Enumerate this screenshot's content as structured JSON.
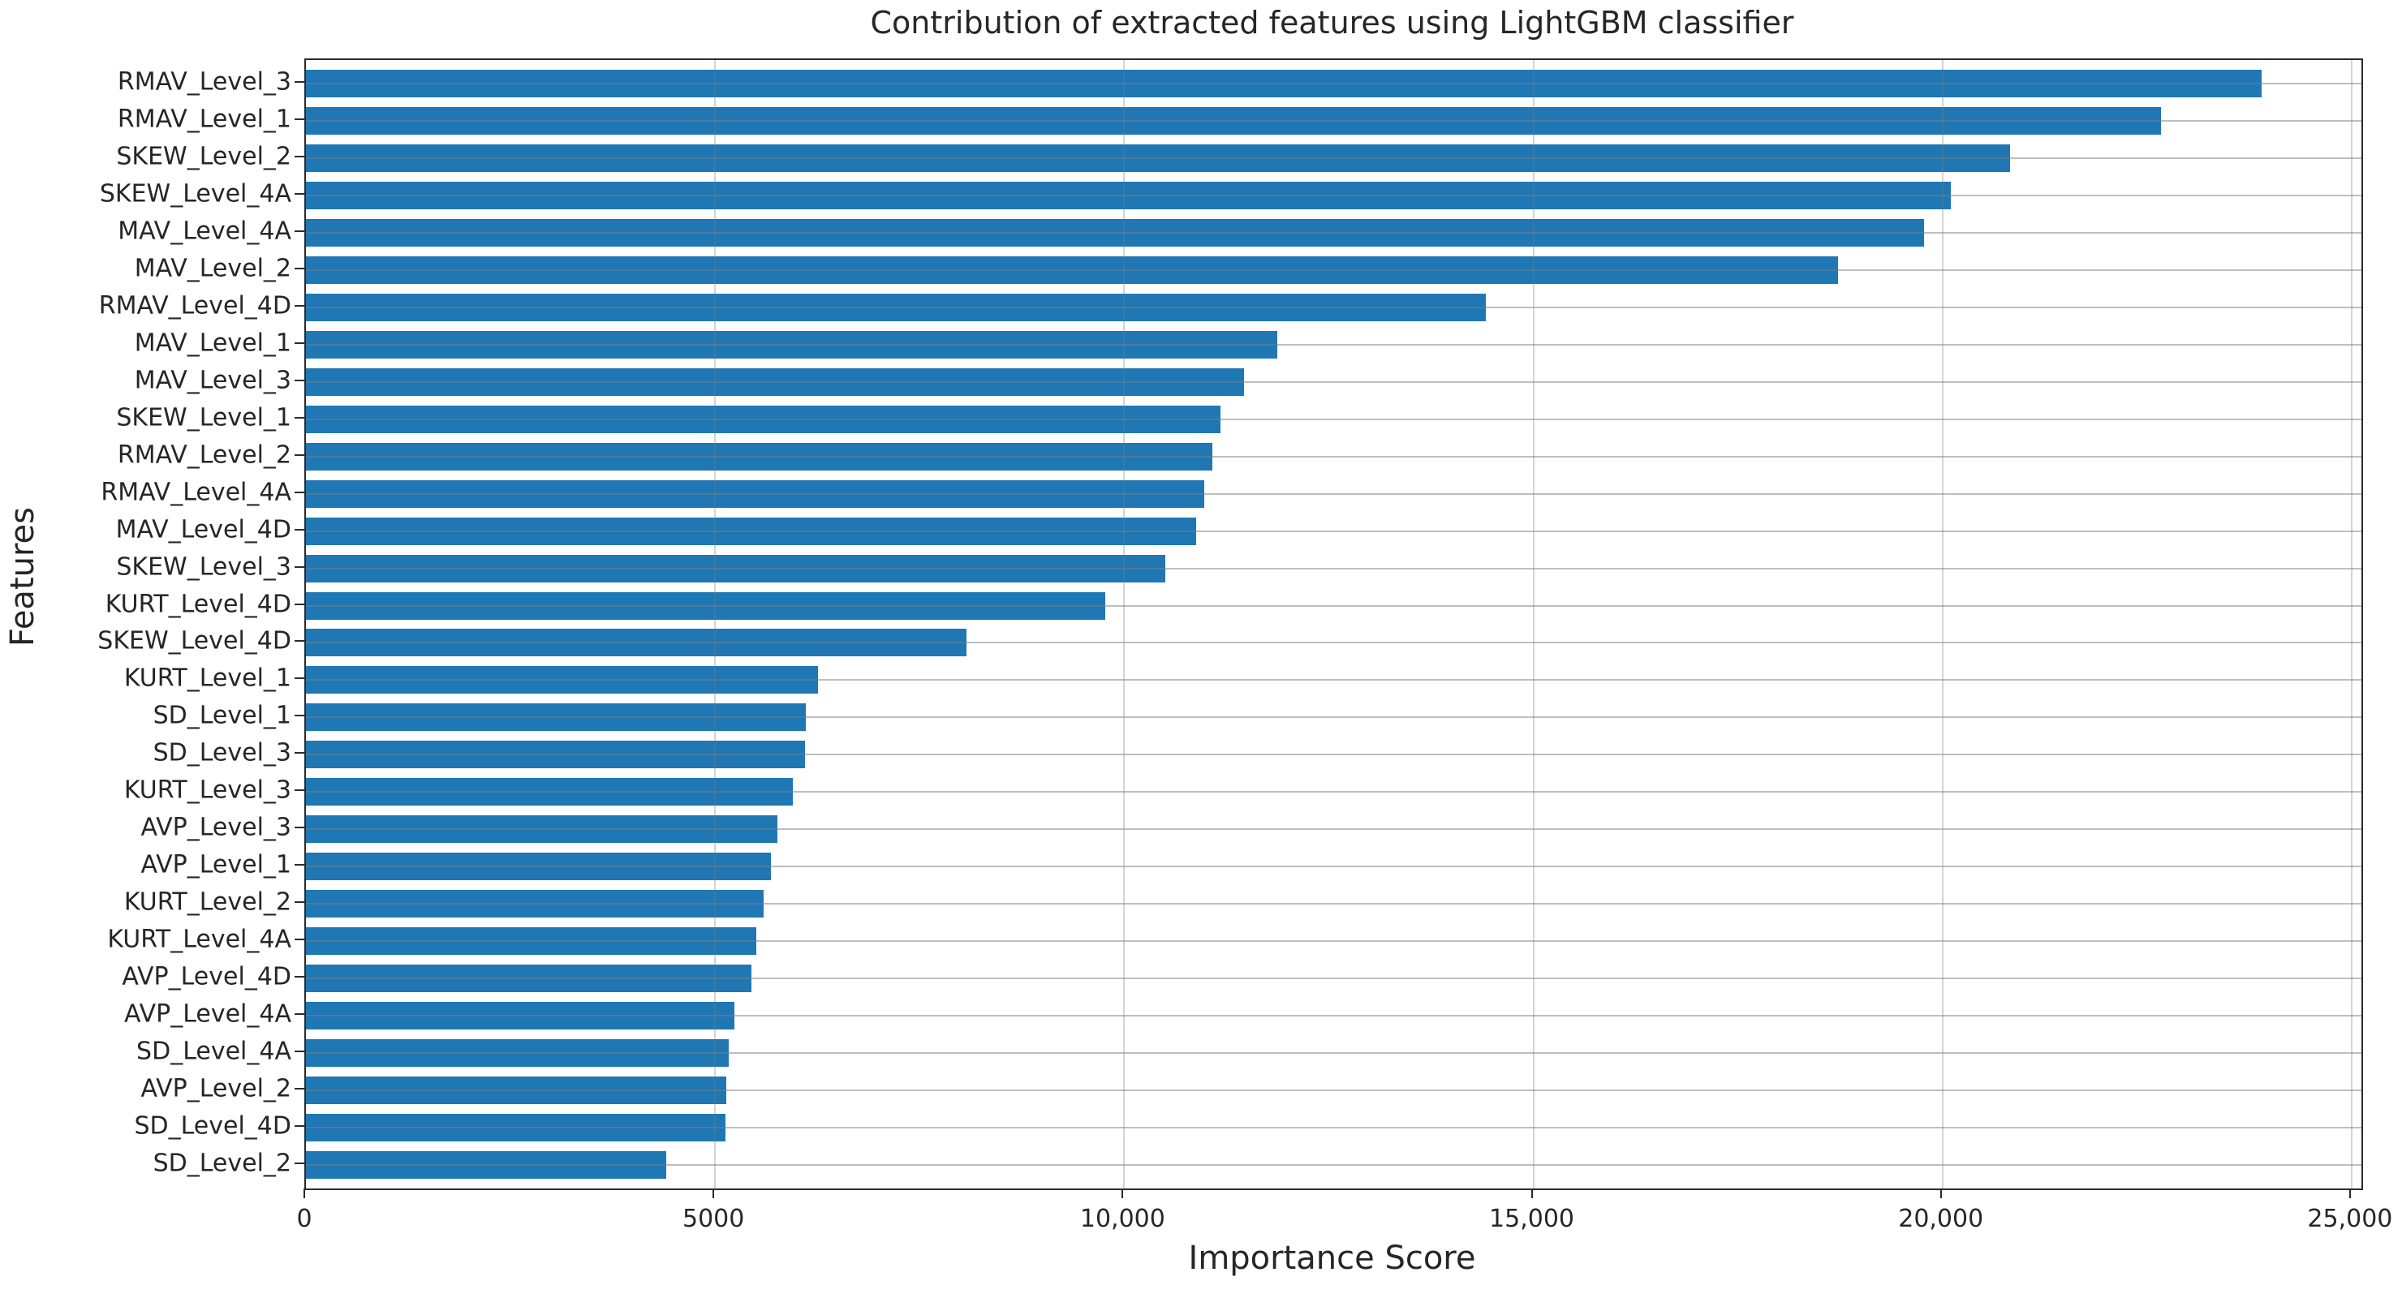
{
  "chart_data": {
    "type": "bar",
    "orientation": "horizontal",
    "title": "Contribution of extracted features using LightGBM classifier",
    "xlabel": "Importance Score",
    "ylabel": "Features",
    "categories": [
      "RMAV_Level_3",
      "RMAV_Level_1",
      "SKEW_Level_2",
      "SKEW_Level_4A",
      "MAV_Level_4A",
      "MAV_Level_2",
      "RMAV_Level_4D",
      "MAV_Level_1",
      "MAV_Level_3",
      "SKEW_Level_1",
      "RMAV_Level_2",
      "RMAV_Level_4A",
      "MAV_Level_4D",
      "SKEW_Level_3",
      "KURT_Level_4D",
      "SKEW_Level_4D",
      "KURT_Level_1",
      "SD_Level_1",
      "SD_Level_3",
      "KURT_Level_3",
      "AVP_Level_3",
      "AVP_Level_1",
      "KURT_Level_2",
      "KURT_Level_4A",
      "AVP_Level_4D",
      "AVP_Level_4A",
      "SD_Level_4A",
      "AVP_Level_2",
      "SD_Level_4D",
      "SD_Level_2"
    ],
    "values": [
      23900,
      22670,
      20830,
      20100,
      19770,
      18720,
      14420,
      11870,
      11460,
      11180,
      11080,
      10980,
      10880,
      10500,
      9770,
      8070,
      6260,
      6110,
      6100,
      5950,
      5760,
      5680,
      5590,
      5500,
      5440,
      5240,
      5170,
      5140,
      5130,
      4400
    ],
    "xlim": [
      0,
      25120
    ],
    "xticks": [
      {
        "value": 0,
        "label": "0"
      },
      {
        "value": 5000,
        "label": "5000"
      },
      {
        "value": 10000,
        "label": "10,000"
      },
      {
        "value": 15000,
        "label": "15,000"
      },
      {
        "value": 20000,
        "label": "20,000"
      },
      {
        "value": 25000,
        "label": "25,000"
      }
    ],
    "grid": true,
    "legend": null,
    "bar_color": "#1f77b4",
    "axis_text_color": "#262626"
  }
}
